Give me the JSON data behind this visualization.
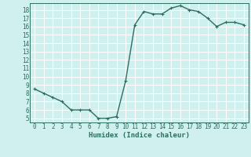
{
  "x": [
    0,
    1,
    2,
    3,
    4,
    5,
    6,
    7,
    8,
    9,
    10,
    11,
    12,
    13,
    14,
    15,
    16,
    17,
    18,
    19,
    20,
    21,
    22,
    23
  ],
  "y": [
    8.5,
    8.0,
    7.5,
    7.0,
    6.0,
    6.0,
    6.0,
    5.0,
    5.0,
    5.2,
    9.5,
    16.2,
    17.8,
    17.5,
    17.5,
    18.2,
    18.5,
    18.0,
    17.8,
    17.0,
    16.0,
    16.5,
    16.5,
    16.2
  ],
  "line_color": "#2d6e5e",
  "marker": "+",
  "marker_size": 3,
  "marker_lw": 0.8,
  "xlabel": "Humidex (Indice chaleur)",
  "xlim": [
    -0.5,
    23.5
  ],
  "ylim": [
    4.5,
    18.8
  ],
  "yticks": [
    5,
    6,
    7,
    8,
    9,
    10,
    11,
    12,
    13,
    14,
    15,
    16,
    17,
    18
  ],
  "xticks": [
    0,
    1,
    2,
    3,
    4,
    5,
    6,
    7,
    8,
    9,
    10,
    11,
    12,
    13,
    14,
    15,
    16,
    17,
    18,
    19,
    20,
    21,
    22,
    23
  ],
  "bg_color": "#cff0ee",
  "grid_color": "#ffffff",
  "tick_fontsize": 5.5,
  "xlabel_fontsize": 6.5,
  "line_width": 1.0,
  "spine_color": "#2d6e5e"
}
